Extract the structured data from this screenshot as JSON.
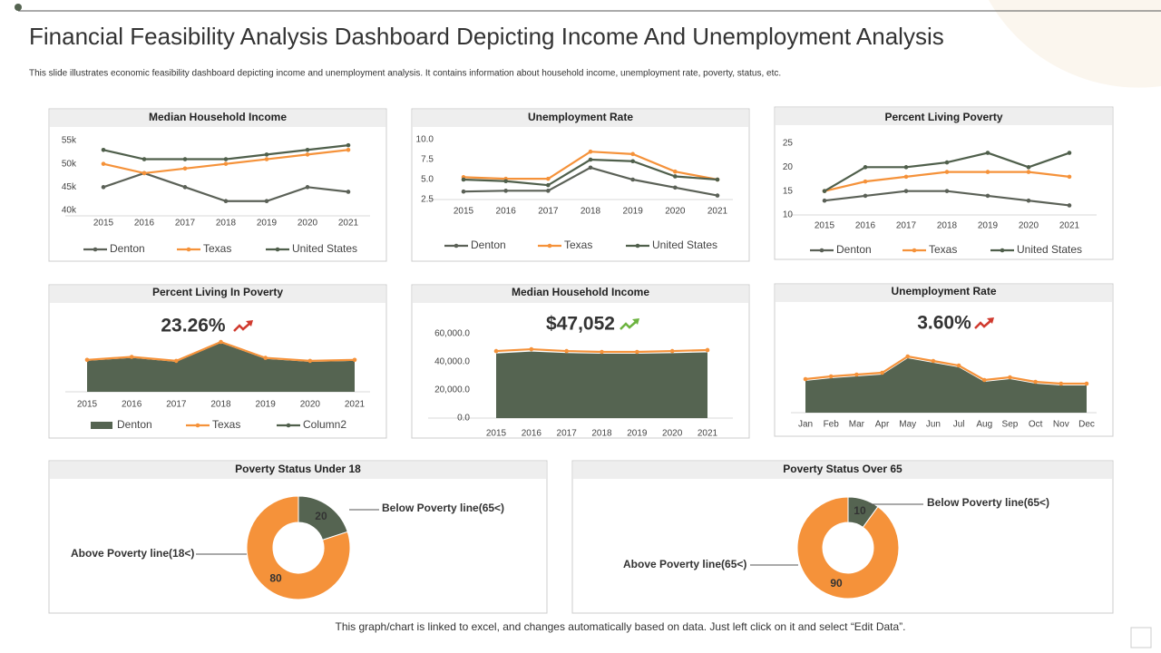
{
  "title": "Financial Feasibility Analysis Dashboard Depicting Income And Unemployment Analysis",
  "subtitle": "This slide illustrates economic feasibility dashboard depicting income and unemployment  analysis. It contains information about household income,  unemployment rate, poverty, status, etc.",
  "footer": "This graph/chart is linked to excel,  and changes automatically based on data. Just left click on it and select “Edit Data”.",
  "chart_data": [
    {
      "type": "line",
      "title": "Median Household Income",
      "categories": [
        "2015",
        "2016",
        "2017",
        "2018",
        "2019",
        "2020",
        "2021"
      ],
      "series": [
        {
          "name": "Denton",
          "color": "#5b6157",
          "values": [
            45000,
            48000,
            45000,
            42000,
            42000,
            45000,
            44000
          ]
        },
        {
          "name": "Texas",
          "color": "#f5923a",
          "values": [
            50000,
            48000,
            49000,
            50000,
            51000,
            52000,
            53000
          ]
        },
        {
          "name": "United States",
          "color": "#4f5f4b",
          "values": [
            53000,
            51000,
            51000,
            51000,
            52000,
            53000,
            54000
          ]
        }
      ],
      "ylim": [
        40000,
        55000
      ],
      "yticks": [
        {
          "value": 40000,
          "label": "40k"
        },
        {
          "value": 45000,
          "label": "45k"
        },
        {
          "value": 50000,
          "label": "50k"
        },
        {
          "value": 55000,
          "label": "55k"
        }
      ]
    },
    {
      "type": "line",
      "title": "Unemployment Rate",
      "categories": [
        "2015",
        "2016",
        "2017",
        "2018",
        "2019",
        "2020",
        "2021"
      ],
      "series": [
        {
          "name": "Denton",
          "color": "#5b6157",
          "values": [
            3.5,
            3.6,
            3.6,
            6.5,
            5.0,
            4.0,
            3.0
          ]
        },
        {
          "name": "Texas",
          "color": "#f5923a",
          "values": [
            5.3,
            5.1,
            5.1,
            8.5,
            8.2,
            6.0,
            5.0
          ]
        },
        {
          "name": "United States",
          "color": "#4f5f4b",
          "values": [
            5.0,
            4.8,
            4.3,
            7.5,
            7.3,
            5.4,
            5.0
          ]
        }
      ],
      "ylim": [
        2.5,
        10
      ],
      "yticks": [
        2.5,
        {
          "value": 5,
          "label": "5.0"
        },
        7.5,
        {
          "value": 10,
          "label": "10.0"
        }
      ]
    },
    {
      "type": "line",
      "title": "Percent Living Poverty",
      "categories": [
        "2015",
        "2016",
        "2017",
        "2018",
        "2019",
        "2020",
        "2021"
      ],
      "series": [
        {
          "name": "Denton",
          "color": "#5b6157",
          "values": [
            13,
            14,
            15,
            15,
            14,
            13,
            12
          ]
        },
        {
          "name": "Texas",
          "color": "#f5923a",
          "values": [
            15,
            17,
            18,
            19,
            19,
            19,
            18
          ]
        },
        {
          "name": "United States",
          "color": "#4f5f4b",
          "values": [
            15,
            20,
            20,
            21,
            23,
            20,
            23
          ]
        }
      ],
      "ylim": [
        10,
        25
      ],
      "yticks": [
        10,
        15,
        20,
        25
      ]
    },
    {
      "type": "area",
      "title": "Percent Living In Poverty",
      "annotation": "23.26%",
      "categories": [
        "2015",
        "2016",
        "2017",
        "2018",
        "2019",
        "2020",
        "2021"
      ],
      "series": [
        {
          "name": "Denton",
          "kind": "area",
          "color": "#556451",
          "values": [
            15.5,
            17,
            15,
            24.5,
            16.5,
            15,
            15.5
          ]
        },
        {
          "name": "Texas",
          "kind": "line",
          "color": "#f5923a",
          "values": [
            16,
            17.5,
            15.5,
            25,
            17,
            15.5,
            16
          ]
        },
        {
          "name": "Column2",
          "kind": "line",
          "color": "#4f5f4b",
          "values": [
            null,
            null,
            null,
            null,
            null,
            null,
            null
          ]
        }
      ]
    },
    {
      "type": "area",
      "title": "Median Household Income",
      "annotation": "$47,052",
      "categories": [
        "2015",
        "2016",
        "2017",
        "2018",
        "2019",
        "2020",
        "2021"
      ],
      "series": [
        {
          "kind": "area",
          "color": "#556451",
          "values": [
            46000,
            47300,
            46300,
            45800,
            45800,
            46200,
            46800
          ]
        },
        {
          "kind": "line",
          "color": "#f5923a",
          "values": [
            47700,
            49000,
            47700,
            47100,
            47100,
            47700,
            48400
          ]
        }
      ],
      "ylim": [
        0,
        60000
      ],
      "yticks": [
        {
          "value": 0,
          "label": "0.0"
        },
        {
          "value": 20000,
          "label": "20,000.0"
        },
        {
          "value": 40000,
          "label": "40,000.0"
        },
        {
          "value": 60000,
          "label": "60,000.0"
        }
      ]
    },
    {
      "type": "area",
      "title": "Unemployment Rate",
      "annotation": "3.60%",
      "categories": [
        "Jan",
        "Feb",
        "Mar",
        "Apr",
        "May",
        "Jun",
        "Jul",
        "Aug",
        "Sep",
        "Oct",
        "Nov",
        "Dec"
      ],
      "series": [
        {
          "kind": "area",
          "color": "#556451",
          "values": [
            3.5,
            3.8,
            4.0,
            4.2,
            6.0,
            5.5,
            5.0,
            3.4,
            3.7,
            3.2,
            3.0,
            3.0
          ]
        },
        {
          "kind": "line",
          "color": "#f5923a",
          "values": [
            3.7,
            4.0,
            4.2,
            4.4,
            6.2,
            5.7,
            5.2,
            3.6,
            3.9,
            3.4,
            3.2,
            3.2
          ]
        }
      ]
    },
    {
      "type": "donut",
      "title": "Poverty Status Under 18",
      "categories": [
        "Below Poverty line(65<)",
        "Above Poverty line(18<)"
      ],
      "values": [
        20,
        80
      ],
      "colors": [
        "#556451",
        "#f5923a"
      ]
    },
    {
      "type": "donut",
      "title": "Poverty Status Over 65",
      "categories": [
        "Below Poverty line(65<)",
        "Above Poverty line(65<)"
      ],
      "values": [
        10,
        90
      ],
      "colors": [
        "#556451",
        "#f5923a"
      ]
    }
  ]
}
